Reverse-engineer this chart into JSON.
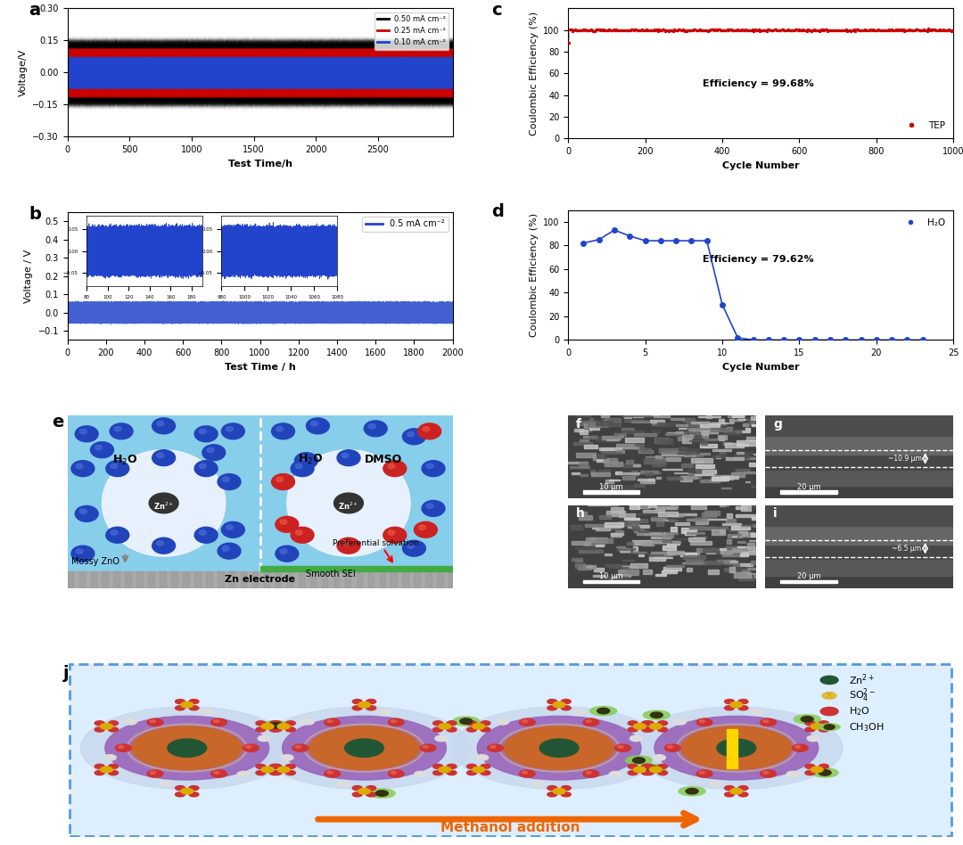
{
  "panel_a": {
    "label": "a",
    "xlabel": "Test Time/h",
    "ylabel": "Voltage/V",
    "xlim": [
      0,
      3100
    ],
    "ylim": [
      -0.3,
      0.3
    ],
    "yticks": [
      -0.3,
      -0.15,
      0.0,
      0.15,
      0.3
    ],
    "xticks": [
      0,
      500,
      1000,
      1500,
      2000,
      2500
    ],
    "legend_labels": [
      "0.50 mA cm⁻²",
      "0.25 mA cm⁻²",
      "0.10 mA cm⁻²"
    ],
    "legend_colors": [
      "black",
      "#cc0000",
      "#2244cc"
    ],
    "band_black_upper": 0.155,
    "band_black_lower": -0.155,
    "band_red_upper": 0.115,
    "band_red_lower": -0.115,
    "band_blue_upper": 0.075,
    "band_blue_lower": -0.075
  },
  "panel_b": {
    "label": "b",
    "xlabel": "Test Time / h",
    "ylabel": "Voltage / V",
    "xlim": [
      0,
      2000
    ],
    "ylim": [
      -0.15,
      0.55
    ],
    "yticks": [
      -0.1,
      0.0,
      0.1,
      0.2,
      0.3,
      0.4,
      0.5
    ],
    "xticks": [
      0,
      200,
      400,
      600,
      800,
      1000,
      1200,
      1400,
      1600,
      1800,
      2000
    ],
    "legend_label": "0.5 mA cm⁻²",
    "legend_color": "#2244cc",
    "ins1_xlim": [
      80,
      190
    ],
    "ins2_xlim": [
      980,
      1080
    ],
    "ins_ylim": [
      -0.08,
      0.08
    ],
    "ins_yticks": [
      -0.05,
      0.0,
      0.05
    ]
  },
  "panel_c": {
    "label": "c",
    "xlabel": "Cycle Number",
    "ylabel": "Coulombic Efficiency (%)",
    "xlim": [
      0,
      1000
    ],
    "ylim": [
      0,
      120
    ],
    "yticks": [
      0,
      20,
      40,
      60,
      80,
      100
    ],
    "xticks": [
      0,
      200,
      400,
      600,
      800,
      1000
    ],
    "legend_label": "TEP",
    "legend_color": "#cc0000",
    "efficiency_text": "Efficiency = 99.68%",
    "first_point": 88
  },
  "panel_d": {
    "label": "d",
    "xlabel": "Cycle Number",
    "ylabel": "Coulombic Efficiency (%)",
    "xlim": [
      0,
      25
    ],
    "ylim": [
      0,
      110
    ],
    "yticks": [
      0,
      20,
      40,
      60,
      80,
      100
    ],
    "xticks": [
      0,
      5,
      10,
      15,
      20,
      25
    ],
    "legend_label": "H₂O",
    "legend_color": "#2244cc",
    "efficiency_text": "Efficiency = 79.62%",
    "data_x": [
      1,
      2,
      3,
      4,
      5,
      6,
      7,
      8,
      9,
      10,
      11,
      12,
      13,
      14,
      15,
      16,
      17,
      18,
      19,
      20,
      21,
      22,
      23
    ],
    "data_y": [
      82,
      85,
      93,
      88,
      84,
      84,
      84,
      84,
      84,
      30,
      2,
      0,
      0,
      0,
      0,
      0,
      0,
      0,
      0,
      0,
      0,
      0,
      0
    ]
  },
  "panel_e": {
    "label": "e",
    "bg_color": "#87CEEB",
    "sphere_color": "#e8f0ff",
    "blue_mol_color": "#2244bb",
    "red_mol_color": "#cc2222",
    "zn_color": "#333333",
    "electrode_color": "#888888",
    "sei_color": "#44aa44"
  },
  "panel_j": {
    "label": "j",
    "bg_color": "#ddeeff",
    "border_color": "#5599dd",
    "arrow_color": "#ee6600",
    "outer_color": "#c8d8ee",
    "mid_color": "#9966bb",
    "inner_color": "#cc6622",
    "core_color": "#885522",
    "shell_glow": "#d8b888"
  },
  "panel_f_label": "f",
  "panel_g_label": "g",
  "panel_g_text": "~10.9 μm",
  "panel_h_label": "h",
  "panel_i_label": "i",
  "panel_i_text": "~6.5 μm",
  "scale_bar_f": "10 μm",
  "scale_bar_g": "20 μm",
  "scale_bar_h": "10 μm",
  "scale_bar_i": "20 μm",
  "figure_bg": "#ffffff"
}
